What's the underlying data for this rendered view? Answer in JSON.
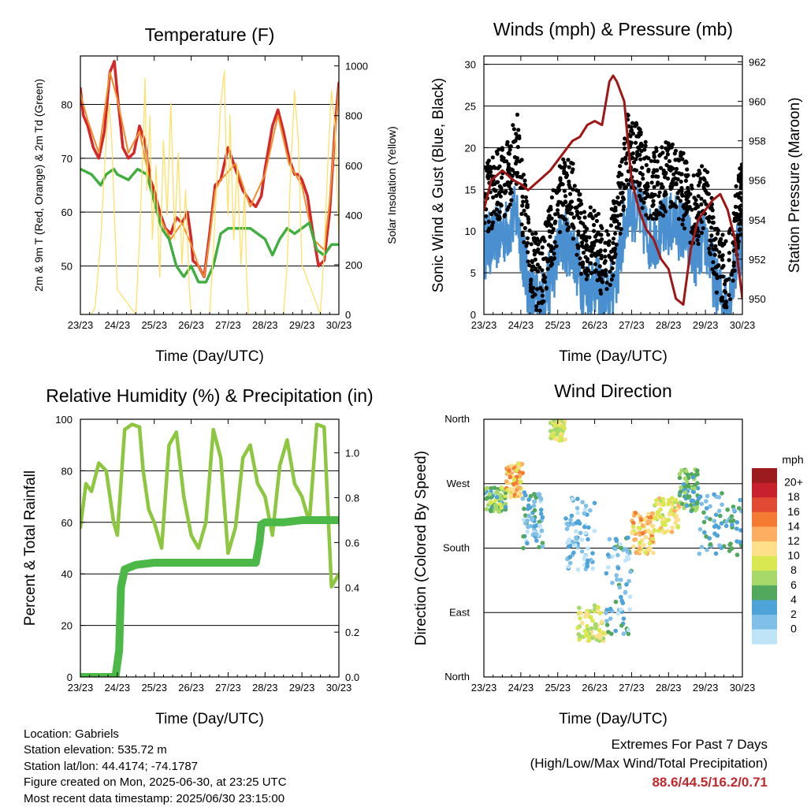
{
  "colors": {
    "t2m": "#d62728",
    "t9m": "#f28e2b",
    "td": "#3fae3f",
    "solar": "#ffe066",
    "gust": "#000000",
    "wind": "#4a90d0",
    "pressure": "#a01616",
    "rh": "#8dc63f",
    "precip": "#4cb848"
  },
  "x_ticks": [
    "23/23",
    "24/23",
    "25/23",
    "26/23",
    "27/23",
    "28/23",
    "29/23",
    "30/23"
  ],
  "x_label": "Time (Day/UTC)",
  "chart_data": [
    {
      "type": "line",
      "title": "Temperature (F)",
      "xlabel": "Time (Day/UTC)",
      "ylabel": "2m & 9m T (Red, Orange) & 2m Td (Green)",
      "y2label": "Solar Insolation (Yellow)",
      "ylim": [
        41,
        89
      ],
      "y2lim": [
        0,
        1040
      ],
      "yticks": [
        50,
        60,
        70,
        80
      ],
      "y2ticks": [
        0,
        200,
        400,
        600,
        800,
        1000
      ],
      "series": [
        {
          "key": "t2m",
          "axis": "left",
          "color": "#d62728",
          "width": 3.5,
          "x": [
            0,
            0.08,
            0.2,
            0.35,
            0.5,
            0.65,
            0.8,
            0.92,
            1.0,
            1.15,
            1.3,
            1.45,
            1.6,
            1.75,
            1.9,
            2.0,
            2.15,
            2.3,
            2.45,
            2.6,
            2.75,
            2.9,
            3.0,
            3.05,
            3.2,
            3.35,
            3.5,
            3.65,
            3.8,
            4.0,
            4.2,
            4.4,
            4.6,
            4.75,
            4.9,
            5.0,
            5.2,
            5.35,
            5.5,
            5.65,
            5.8,
            5.9,
            6.0,
            6.15,
            6.3,
            6.45,
            6.6,
            6.75,
            6.9,
            7.0
          ],
          "y": [
            83,
            78,
            76,
            72,
            70,
            75,
            86,
            88,
            82,
            72,
            70,
            71,
            76,
            73,
            66,
            64,
            60,
            57,
            56,
            59,
            58,
            60,
            55,
            51,
            50,
            48,
            56,
            65,
            66,
            72,
            68,
            64,
            62,
            61,
            63,
            68,
            76,
            79,
            75,
            70,
            67,
            67,
            66,
            63,
            56,
            50,
            51,
            60,
            76,
            84
          ]
        },
        {
          "key": "t9m",
          "axis": "left",
          "color": "#f28e2b",
          "width": 2,
          "x": [
            0,
            0.2,
            0.5,
            0.8,
            1.0,
            1.3,
            1.6,
            1.9,
            2.15,
            2.45,
            2.75,
            3.0,
            3.2,
            3.35,
            3.5,
            3.65,
            3.8,
            4.2,
            4.6,
            5.0,
            5.35,
            5.65,
            6.0,
            6.3,
            6.45,
            6.6,
            6.75,
            6.9,
            7.0
          ],
          "y": [
            82,
            77,
            71,
            86,
            81,
            71,
            75,
            65,
            59,
            55,
            58,
            54,
            50,
            48,
            55,
            64,
            66,
            69,
            61,
            67,
            78,
            69,
            65,
            55,
            54,
            53,
            62,
            75,
            83
          ]
        },
        {
          "key": "td",
          "axis": "left",
          "color": "#3fae3f",
          "width": 3.5,
          "dashed": true,
          "x": [
            0,
            0.3,
            0.55,
            0.7,
            0.9,
            1.0,
            1.3,
            1.55,
            1.8,
            2.0,
            2.2,
            2.4,
            2.6,
            2.8,
            3.0,
            3.2,
            3.4,
            3.6,
            3.8,
            4.0,
            4.3,
            4.6,
            4.8,
            5.0,
            5.2,
            5.4,
            5.6,
            5.8,
            6.0,
            6.2,
            6.4,
            6.6,
            6.8,
            7.0
          ],
          "y": [
            68,
            67,
            65,
            67,
            68,
            67,
            66,
            68,
            67,
            62,
            57,
            55,
            50,
            48,
            50,
            47,
            47,
            50,
            56,
            57,
            57,
            57,
            56,
            55,
            52,
            55,
            57,
            56,
            57,
            58,
            53,
            52,
            54,
            54
          ]
        },
        {
          "key": "solar",
          "axis": "right",
          "color": "#ffe066",
          "width": 1.3,
          "x": [
            0,
            0.1,
            0.2,
            0.3,
            0.4,
            0.45,
            0.55,
            0.62,
            0.7,
            0.78,
            0.85,
            0.92,
            1.0,
            1.5,
            1.6,
            1.7,
            1.75,
            1.8,
            1.88,
            1.95,
            2.05,
            2.15,
            2.25,
            2.35,
            2.45,
            2.55,
            2.65,
            2.75,
            2.85,
            2.95,
            3.0,
            3.5,
            3.6,
            3.7,
            3.8,
            3.9,
            3.95,
            4.0,
            4.05,
            4.15,
            4.25,
            4.35,
            4.45,
            4.5,
            4.55,
            4.6,
            4.65,
            4.7,
            4.75,
            4.8,
            4.85,
            5.0,
            5.5,
            5.6,
            5.7,
            5.8,
            5.9,
            6.0,
            6.5,
            6.6,
            6.7,
            6.8,
            6.9,
            7.0
          ],
          "y": [
            0,
            0,
            0,
            0,
            30,
            120,
            300,
            500,
            700,
            850,
            700,
            400,
            100,
            0,
            300,
            700,
            950,
            500,
            800,
            300,
            600,
            150,
            700,
            400,
            850,
            300,
            650,
            200,
            500,
            100,
            0,
            0,
            250,
            550,
            850,
            980,
            600,
            400,
            800,
            300,
            600,
            200,
            500,
            150,
            0,
            0,
            0,
            0,
            0,
            0,
            0,
            0,
            0,
            200,
            600,
            900,
            700,
            200,
            0,
            250,
            600,
            900,
            750,
            300
          ]
        }
      ]
    },
    {
      "type": "line",
      "title": "Winds (mph) & Pressure (mb)",
      "xlabel": "Time (Day/UTC)",
      "ylabel": "Sonic Wind & Gust (Blue, Black)",
      "y2label": "Station Pressure (Maroon)",
      "ylim": [
        0,
        31
      ],
      "y2lim": [
        949.2,
        962.3
      ],
      "yticks": [
        0,
        5,
        10,
        15,
        20,
        25,
        30
      ],
      "y2ticks": [
        950,
        952,
        954,
        956,
        958,
        960,
        962
      ],
      "series": [
        {
          "key": "wind",
          "axis": "left",
          "color": "#4a90d0",
          "width": 2.5,
          "jitter": true,
          "x": [
            0,
            0.3,
            0.6,
            0.9,
            1.2,
            1.5,
            1.8,
            2.1,
            2.4,
            2.7,
            3.0,
            3.3,
            3.6,
            3.9,
            4.2,
            4.5,
            4.8,
            5.1,
            5.4,
            5.7,
            6.0,
            6.3,
            6.6,
            6.9,
            7.0
          ],
          "y": [
            8,
            9,
            10,
            12,
            3,
            1,
            4,
            9,
            8,
            3,
            4,
            1,
            5,
            13,
            12,
            9,
            10,
            11,
            10,
            7,
            9,
            3,
            1,
            8,
            9
          ]
        },
        {
          "key": "gust",
          "axis": "left",
          "color": "#000000",
          "width": 0,
          "scatter": true,
          "x": [
            0,
            0.3,
            0.6,
            0.9,
            1.2,
            1.5,
            1.8,
            2.1,
            2.4,
            2.7,
            3.0,
            3.3,
            3.6,
            3.9,
            4.2,
            4.5,
            4.8,
            5.1,
            5.4,
            5.7,
            6.0,
            6.3,
            6.6,
            6.9,
            7.0
          ],
          "y": [
            14,
            15,
            16,
            20,
            8,
            4,
            9,
            15,
            14,
            8,
            9,
            5,
            11,
            20,
            18,
            15,
            16,
            17,
            15,
            12,
            14,
            7,
            4,
            13,
            14
          ]
        },
        {
          "key": "pressure",
          "axis": "right",
          "color": "#a01616",
          "width": 3,
          "x": [
            0,
            0.2,
            0.5,
            0.8,
            1.0,
            1.2,
            1.5,
            1.8,
            2.0,
            2.2,
            2.4,
            2.6,
            2.8,
            3.0,
            3.2,
            3.4,
            3.5,
            3.6,
            3.8,
            3.9,
            4.0,
            4.2,
            4.4,
            4.6,
            4.8,
            5.0,
            5.2,
            5.4,
            5.6,
            5.8,
            6.0,
            6.2,
            6.4,
            6.6,
            6.8,
            7.0
          ],
          "y": [
            954.5,
            956,
            956.5,
            956,
            955.8,
            955.5,
            956,
            956.5,
            957,
            957.5,
            958,
            958.2,
            958.8,
            959,
            958.8,
            961,
            961.3,
            961,
            960,
            958,
            956,
            954.5,
            953.5,
            953,
            952,
            951.5,
            950,
            949.7,
            952.5,
            954,
            954.5,
            955,
            955.3,
            954.5,
            953,
            950
          ]
        }
      ]
    },
    {
      "type": "line",
      "title": "Relative Humidity (%) & Precipitation (in)",
      "xlabel": "Time (Day/UTC)",
      "ylabel": "Percent & Total Rainfall",
      "ylim": [
        0,
        100
      ],
      "y2lim": [
        0,
        1.15
      ],
      "yticks": [
        0,
        20,
        40,
        60,
        80,
        100
      ],
      "y2ticks": [
        0.0,
        0.2,
        0.4,
        0.6,
        0.8,
        1.0
      ],
      "series": [
        {
          "key": "rh",
          "axis": "left",
          "color": "#8dc63f",
          "width": 4.5,
          "x": [
            0,
            0.15,
            0.3,
            0.5,
            0.7,
            0.9,
            1.0,
            1.2,
            1.4,
            1.6,
            1.7,
            1.85,
            2.0,
            2.2,
            2.4,
            2.6,
            2.8,
            3.0,
            3.2,
            3.4,
            3.6,
            3.8,
            4.0,
            4.2,
            4.4,
            4.6,
            4.8,
            5.0,
            5.2,
            5.4,
            5.6,
            5.8,
            6.0,
            6.2,
            6.4,
            6.6,
            6.8,
            7.0
          ],
          "y": [
            58,
            75,
            72,
            83,
            80,
            60,
            55,
            96,
            98,
            97,
            80,
            65,
            60,
            50,
            90,
            95,
            70,
            55,
            50,
            60,
            96,
            85,
            48,
            58,
            85,
            90,
            75,
            70,
            55,
            82,
            92,
            75,
            70,
            60,
            98,
            97,
            35,
            40
          ]
        },
        {
          "key": "precip",
          "axis": "right",
          "color": "#4cb848",
          "width": 10,
          "x": [
            0,
            0.5,
            0.95,
            1.05,
            1.1,
            1.2,
            1.5,
            2.0,
            3.0,
            4.0,
            4.5,
            4.75,
            4.85,
            4.9,
            5.0,
            5.5,
            6.0,
            7.0
          ],
          "y": [
            0,
            0,
            0,
            0.12,
            0.4,
            0.48,
            0.5,
            0.51,
            0.51,
            0.51,
            0.51,
            0.51,
            0.6,
            0.68,
            0.69,
            0.69,
            0.7,
            0.7
          ]
        }
      ]
    },
    {
      "type": "scatter",
      "title": "Wind Direction",
      "xlabel": "Time (Day/UTC)",
      "ylabel": "Direction (Colored By Speed)",
      "ylim": [
        0,
        360
      ],
      "yticks": [
        "North",
        "East",
        "South",
        "West",
        "North"
      ],
      "legend_title": "mph",
      "legend_labels": [
        "20+",
        "18",
        "16",
        "14",
        "12",
        "10",
        "8",
        "6",
        "4",
        "2",
        "0"
      ],
      "legend_colors": [
        "#9b1b1f",
        "#c8202c",
        "#e34a33",
        "#f47b31",
        "#fdae61",
        "#fee08b",
        "#d9e850",
        "#a6d96a",
        "#52a85c",
        "#4ea3d8",
        "#7fbfe8",
        "#bfe3f7"
      ],
      "clusters": [
        {
          "x": [
            0,
            0.6
          ],
          "y": [
            230,
            265
          ],
          "speed": 7
        },
        {
          "x": [
            0.6,
            1.05
          ],
          "y": [
            250,
            300
          ],
          "speed": 13
        },
        {
          "x": [
            1.05,
            1.6
          ],
          "y": [
            180,
            260
          ],
          "speed": 3
        },
        {
          "x": [
            1.8,
            2.2
          ],
          "y": [
            330,
            360
          ],
          "speed": 10
        },
        {
          "x": [
            2.2,
            3.0
          ],
          "y": [
            150,
            250
          ],
          "speed": 2
        },
        {
          "x": [
            2.5,
            3.3
          ],
          "y": [
            50,
            100
          ],
          "speed": 10
        },
        {
          "x": [
            3.3,
            4.0
          ],
          "y": [
            60,
            200
          ],
          "speed": 3
        },
        {
          "x": [
            4.0,
            4.6
          ],
          "y": [
            170,
            230
          ],
          "speed": 13
        },
        {
          "x": [
            4.6,
            5.3
          ],
          "y": [
            200,
            250
          ],
          "speed": 11
        },
        {
          "x": [
            5.3,
            5.8
          ],
          "y": [
            230,
            290
          ],
          "speed": 6
        },
        {
          "x": [
            5.8,
            7.0
          ],
          "y": [
            170,
            260
          ],
          "speed": 4
        }
      ]
    }
  ],
  "info": {
    "location": "Location: Gabriels",
    "elevation": "Station elevation: 535.72 m",
    "latlon": "Station lat/lon: 44.4174; -74.1787",
    "created": "Figure created on Mon, 2025-06-30, at 23:25 UTC",
    "latest": "Most recent data timestamp: 2025/06/30 23:15:00"
  },
  "extremes": {
    "heading": "Extremes For Past 7 Days",
    "subheading": "(High/Low/Max Wind/Total Precipitation)",
    "values": "88.6/44.5/16.2/0.71"
  }
}
